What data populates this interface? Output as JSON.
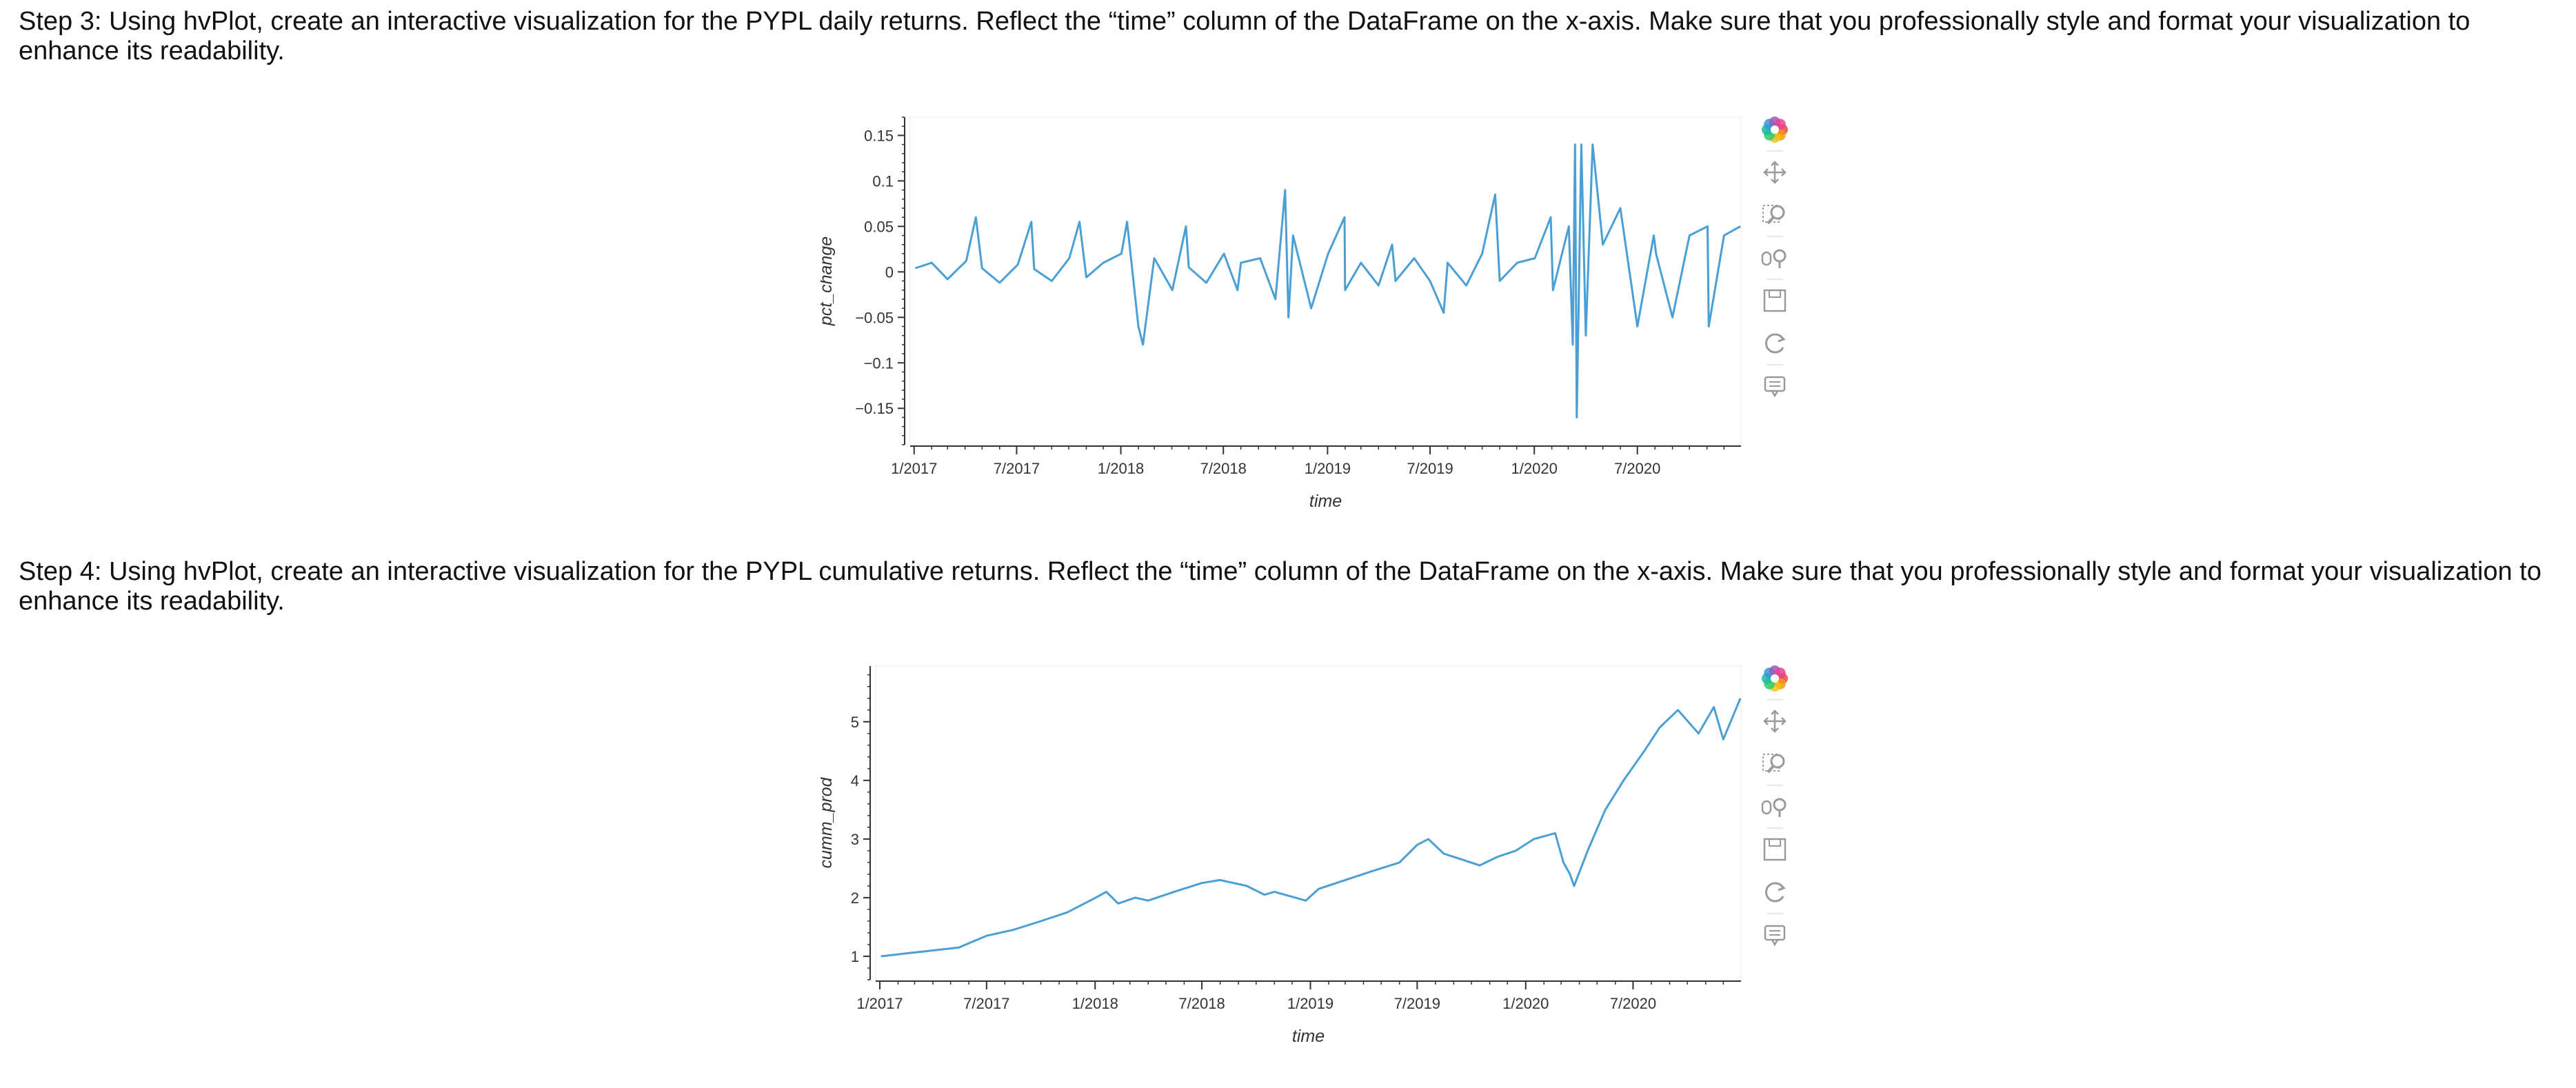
{
  "step3": {
    "text": "Step 3: Using hvPlot, create an interactive visualization for the PYPL daily returns. Reflect the “time” column of the DataFrame on the x-axis. Make sure that you professionally style and format your visualization to enhance its readability."
  },
  "step4": {
    "text": "Step 4: Using hvPlot, create an interactive visualization for the PYPL cumulative returns. Reflect the “time” column of the DataFrame on the x-axis. Make sure that you professionally style and format your visualization to enhance its readability."
  },
  "toolbar_tools": [
    "bokeh-logo-icon",
    "pan-icon",
    "box-zoom-icon",
    "wheel-zoom-icon",
    "save-icon",
    "reset-icon",
    "hover-icon"
  ],
  "colors": {
    "line": "#4a9fd4",
    "axis": "#333333",
    "toolbar_active": "#26aae1"
  },
  "chart_data": [
    {
      "type": "line",
      "title": "",
      "xlabel": "time",
      "ylabel": "pct_change",
      "x_ticks": [
        "1/2017",
        "7/2017",
        "1/2018",
        "7/2018",
        "1/2019",
        "7/2019",
        "1/2020",
        "7/2020"
      ],
      "y_ticks": [
        0.15,
        0.1,
        0.05,
        0,
        -0.05,
        -0.1,
        -0.15
      ],
      "y_tick_labels": [
        "0.15",
        "0.1",
        "0.05",
        "0",
        "−0.05",
        "−0.1",
        "−0.15"
      ],
      "x_range": [
        "2016-12-25",
        "2020-12-31"
      ],
      "ylim": [
        -0.19,
        0.17
      ],
      "grid": false,
      "series": [
        {
          "x": [
            "2017-01-03",
            "2017-02-01",
            "2017-03-01",
            "2017-04-03",
            "2017-04-20",
            "2017-05-01",
            "2017-06-01",
            "2017-07-03",
            "2017-07-27",
            "2017-08-01",
            "2017-09-01",
            "2017-10-02",
            "2017-10-20",
            "2017-11-01",
            "2017-12-01",
            "2018-01-02",
            "2018-01-12",
            "2018-02-01",
            "2018-02-09",
            "2018-03-01",
            "2018-04-02",
            "2018-04-26",
            "2018-05-01",
            "2018-06-01",
            "2018-07-02",
            "2018-07-26",
            "2018-08-01",
            "2018-09-04",
            "2018-10-01",
            "2018-10-18",
            "2018-10-24",
            "2018-11-01",
            "2018-12-03",
            "2019-01-02",
            "2019-01-31",
            "2019-02-01",
            "2019-03-01",
            "2019-04-01",
            "2019-04-25",
            "2019-05-01",
            "2019-06-03",
            "2019-07-01",
            "2019-07-25",
            "2019-08-01",
            "2019-09-03",
            "2019-10-01",
            "2019-10-24",
            "2019-11-01",
            "2019-12-02",
            "2020-01-02",
            "2020-01-30",
            "2020-02-03",
            "2020-03-02",
            "2020-03-09",
            "2020-03-13",
            "2020-03-16",
            "2020-03-24",
            "2020-04-01",
            "2020-04-13",
            "2020-05-01",
            "2020-06-01",
            "2020-07-01",
            "2020-07-30",
            "2020-08-03",
            "2020-09-01",
            "2020-10-01",
            "2020-11-02",
            "2020-11-04",
            "2020-12-01",
            "2020-12-30"
          ],
          "y": [
            0.004,
            0.01,
            -0.008,
            0.012,
            0.06,
            0.004,
            -0.012,
            0.008,
            0.055,
            0.003,
            -0.01,
            0.015,
            0.055,
            -0.006,
            0.01,
            0.02,
            0.055,
            -0.06,
            -0.08,
            0.015,
            -0.02,
            0.05,
            0.005,
            -0.012,
            0.02,
            -0.02,
            0.01,
            0.015,
            -0.03,
            0.09,
            -0.05,
            0.04,
            -0.04,
            0.02,
            0.06,
            -0.02,
            0.01,
            -0.015,
            0.03,
            -0.01,
            0.015,
            -0.01,
            -0.045,
            0.01,
            -0.015,
            0.02,
            0.085,
            -0.01,
            0.01,
            0.015,
            0.06,
            -0.02,
            0.05,
            -0.08,
            0.14,
            -0.16,
            0.14,
            -0.07,
            0.14,
            0.03,
            0.07,
            -0.06,
            0.04,
            0.02,
            -0.05,
            0.04,
            0.05,
            -0.06,
            0.04,
            0.05
          ]
        }
      ]
    },
    {
      "type": "line",
      "title": "",
      "xlabel": "time",
      "ylabel": "cumm_prod",
      "x_ticks": [
        "1/2017",
        "7/2017",
        "1/2018",
        "7/2018",
        "1/2019",
        "7/2019",
        "1/2020",
        "7/2020"
      ],
      "y_ticks": [
        1,
        2,
        3,
        4,
        5
      ],
      "y_tick_labels": [
        "1",
        "2",
        "3",
        "4",
        "5"
      ],
      "x_range": [
        "2016-12-25",
        "2020-12-31"
      ],
      "ylim": [
        0.6,
        5.95
      ],
      "grid": false,
      "series": [
        {
          "x": [
            "2017-01-03",
            "2017-02-15",
            "2017-04-01",
            "2017-05-15",
            "2017-07-01",
            "2017-08-15",
            "2017-10-01",
            "2017-11-15",
            "2018-01-02",
            "2018-01-20",
            "2018-02-09",
            "2018-03-10",
            "2018-04-01",
            "2018-05-15",
            "2018-07-01",
            "2018-08-01",
            "2018-09-15",
            "2018-10-15",
            "2018-11-01",
            "2018-12-24",
            "2019-01-15",
            "2019-03-01",
            "2019-04-15",
            "2019-06-01",
            "2019-07-01",
            "2019-07-20",
            "2019-08-15",
            "2019-09-15",
            "2019-10-15",
            "2019-11-15",
            "2019-12-15",
            "2020-01-15",
            "2020-02-20",
            "2020-03-05",
            "2020-03-16",
            "2020-03-23",
            "2020-04-15",
            "2020-05-15",
            "2020-06-15",
            "2020-07-20",
            "2020-08-15",
            "2020-09-15",
            "2020-10-20",
            "2020-11-15",
            "2020-12-01",
            "2020-12-30"
          ],
          "y": [
            1.0,
            1.05,
            1.1,
            1.15,
            1.35,
            1.45,
            1.6,
            1.75,
            2.0,
            2.1,
            1.9,
            2.0,
            1.95,
            2.1,
            2.25,
            2.3,
            2.2,
            2.05,
            2.1,
            1.95,
            2.15,
            2.3,
            2.45,
            2.6,
            2.9,
            3.0,
            2.75,
            2.65,
            2.55,
            2.7,
            2.8,
            3.0,
            3.1,
            2.6,
            2.4,
            2.2,
            2.8,
            3.5,
            4.0,
            4.5,
            4.9,
            5.2,
            4.8,
            5.25,
            4.7,
            5.4
          ]
        }
      ]
    }
  ]
}
